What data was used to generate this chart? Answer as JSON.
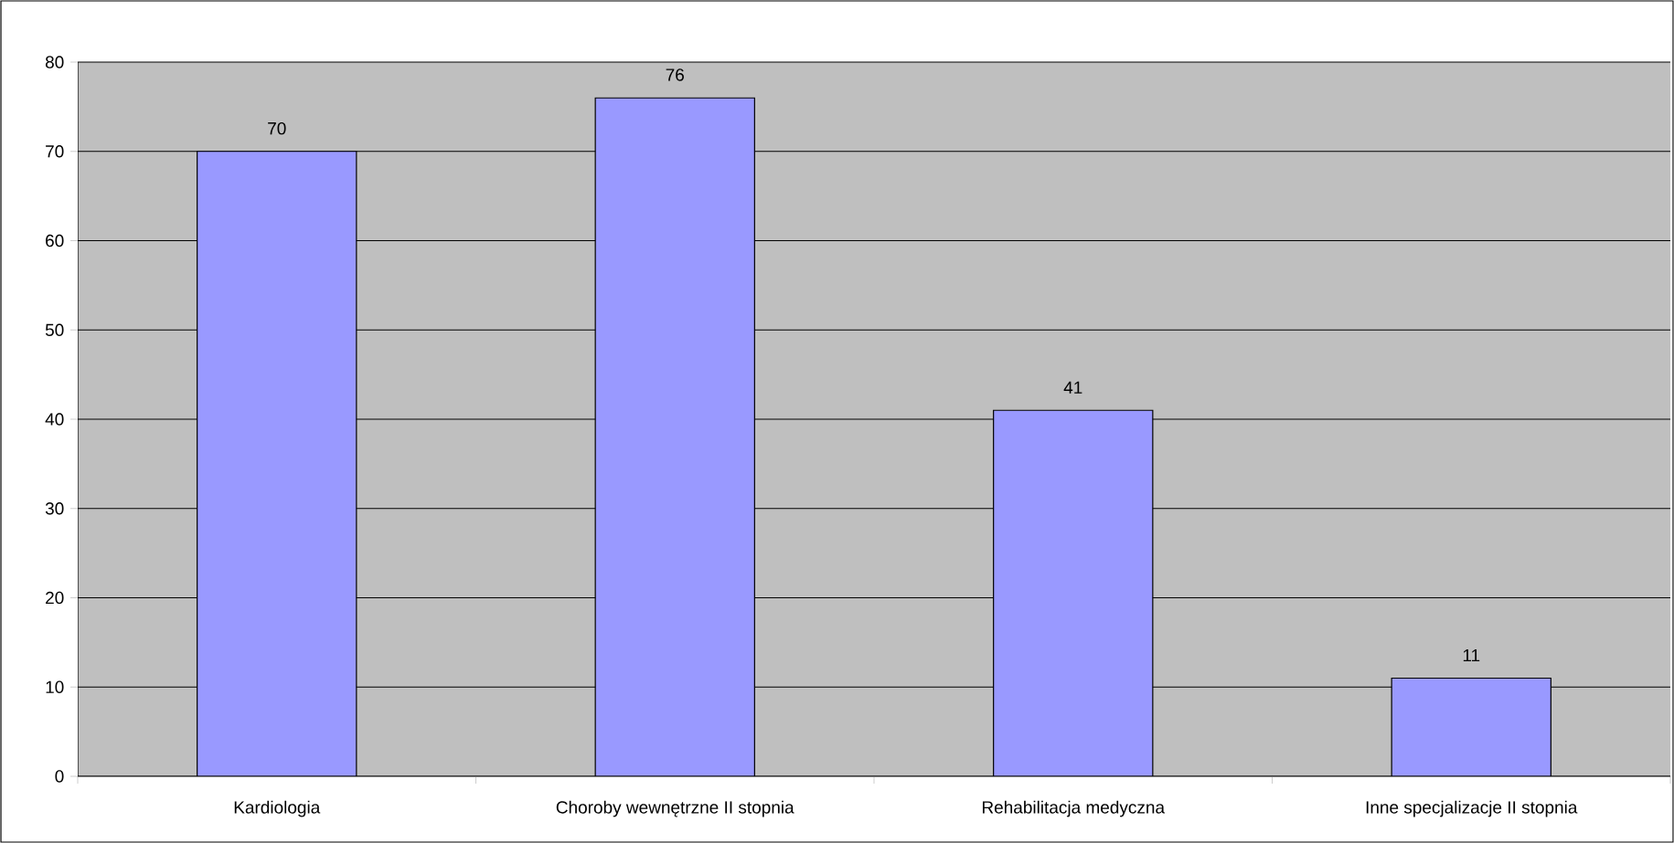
{
  "chart_data": {
    "type": "bar",
    "categories": [
      "Kardiologia",
      "Choroby wewnętrzne II stopnia",
      "Rehabilitacja medyczna",
      "Inne specjalizacje II stopnia"
    ],
    "values": [
      70,
      76,
      41,
      11
    ],
    "color": "#9999ff",
    "ylim": [
      0,
      80
    ],
    "yticks": [
      0,
      10,
      20,
      30,
      40,
      50,
      60,
      70,
      80
    ],
    "grid": "y",
    "data_labels": true
  }
}
